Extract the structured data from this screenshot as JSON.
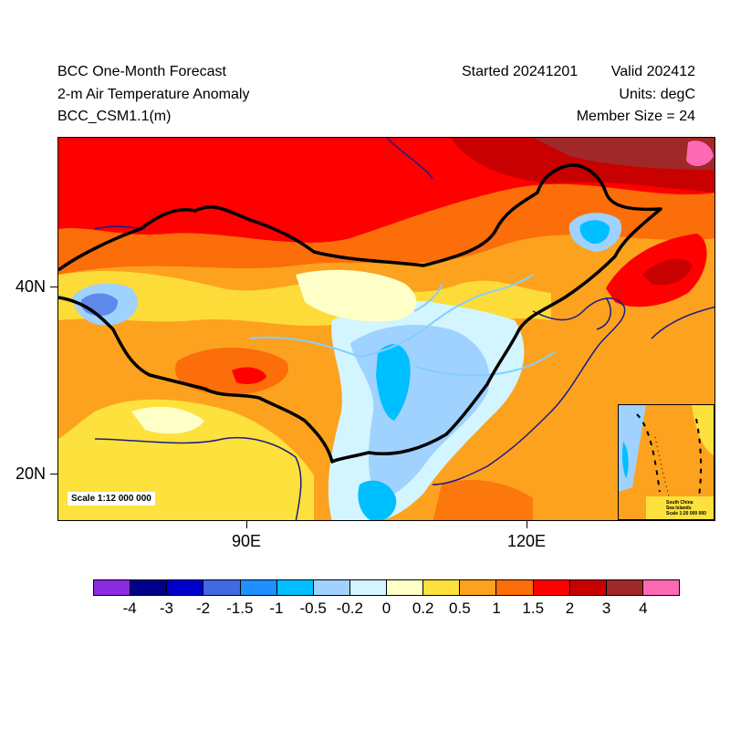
{
  "header": {
    "title_line1": "BCC One-Month Forecast",
    "title_line2": "2-m Air Temperature Anomaly",
    "title_line3": "BCC_CSM1.1(m)",
    "started": "Started 20241201",
    "valid": "Valid 202412",
    "units": "Units: degC",
    "member_size": "Member Size = 24"
  },
  "axes": {
    "lat_labels": [
      "40N",
      "20N"
    ],
    "lon_labels": [
      "90E",
      "120E"
    ]
  },
  "map": {
    "scale_text": "Scale 1:12 000 000",
    "inset_line1": "South China",
    "inset_line2": "Sea Islands",
    "inset_scale": "Scale 1:20 000 000"
  },
  "colorbar": {
    "colors": [
      "#8a2be2",
      "#00008b",
      "#0000cd",
      "#4169e1",
      "#1e90ff",
      "#00bfff",
      "#a0d2ff",
      "#d2f5ff",
      "#ffffc8",
      "#fde13c",
      "#fca21e",
      "#fb6e0a",
      "#ff0000",
      "#c80000",
      "#a02828",
      "#ff69b4"
    ],
    "labels": [
      "-4",
      "-3",
      "-2",
      "-1.5",
      "-1",
      "-0.5",
      "-0.2",
      "0",
      "0.2",
      "0.5",
      "1",
      "1.5",
      "2",
      "3",
      "4"
    ]
  }
}
